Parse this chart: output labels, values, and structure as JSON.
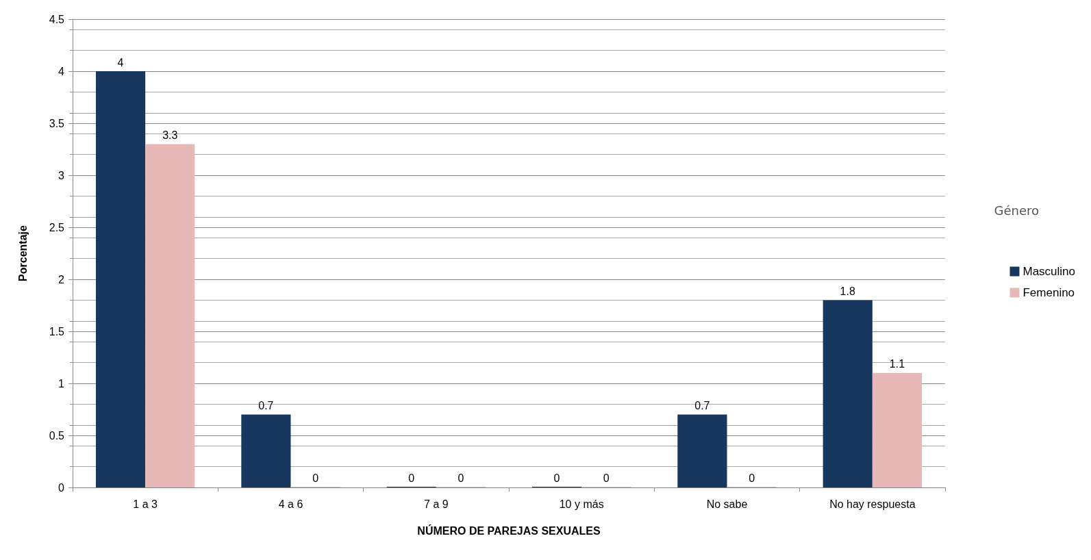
{
  "chart_data": {
    "type": "bar",
    "xlabel": "NÚMERO DE PAREJAS SEXUALES",
    "ylabel": "Porcentaje",
    "legend_title": "Género",
    "categories": [
      "1 a 3",
      "4 a 6",
      "7 a 9",
      "10 y más",
      "No sabe",
      "No hay respuesta"
    ],
    "series": [
      {
        "name": "Masculino",
        "color": "#17375e",
        "values": [
          4,
          0.7,
          0,
          0,
          0.7,
          1.8
        ]
      },
      {
        "name": "Femenino",
        "color": "#e6b9b8",
        "values": [
          3.3,
          0,
          0,
          0,
          0,
          1.1
        ]
      }
    ],
    "ylim": [
      0,
      4.5
    ],
    "yticks": [
      0,
      0.5,
      1,
      1.5,
      2,
      2.5,
      3,
      3.5,
      4,
      4.5
    ],
    "grid": "y",
    "legend": "right",
    "data_labels": true
  }
}
